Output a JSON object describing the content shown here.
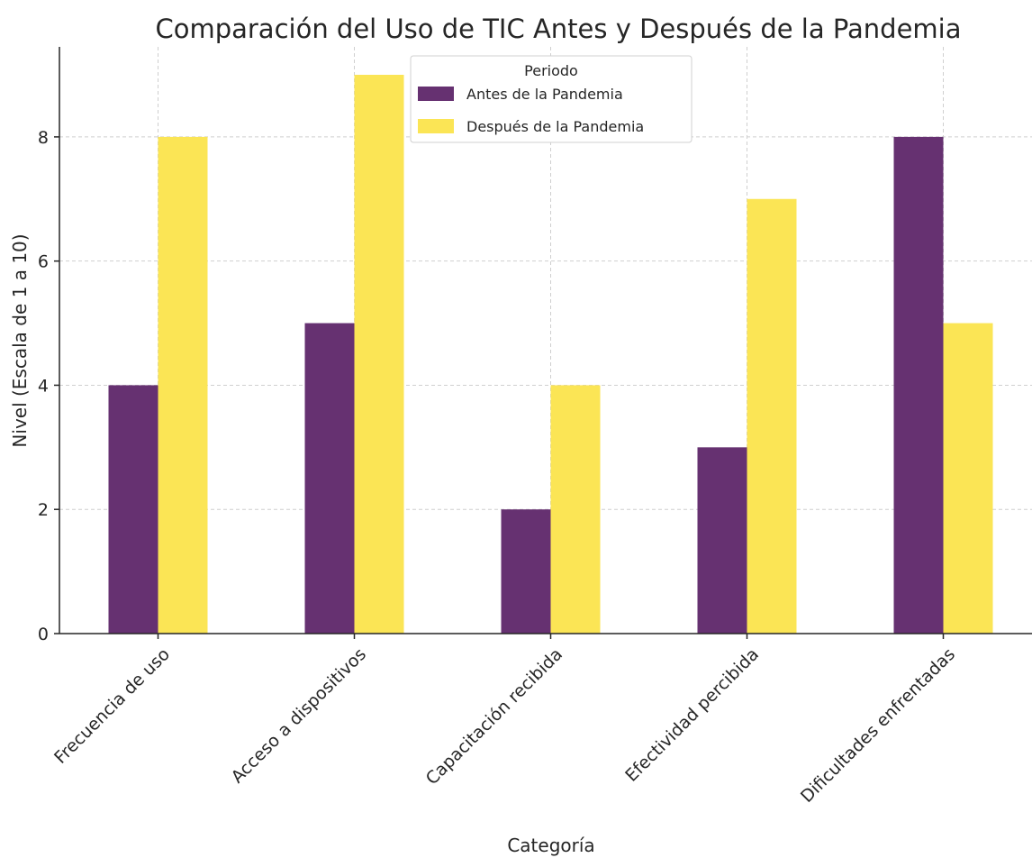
{
  "chart_data": {
    "type": "bar",
    "title": "Comparación del Uso de TIC Antes y Después de la Pandemia",
    "xlabel": "Categoría",
    "ylabel": "Nivel (Escala de 1 a 10)",
    "categories": [
      "Frecuencia de uso",
      "Acceso a dispositivos",
      "Capacitación recibida",
      "Efectividad percibida",
      "Dificultades enfrentadas"
    ],
    "series": [
      {
        "name": "Antes de la Pandemia",
        "values": [
          4,
          5,
          2,
          3,
          8
        ],
        "color": "#663171"
      },
      {
        "name": "Después de la Pandemia",
        "values": [
          8,
          9,
          4,
          7,
          5
        ],
        "color": "#fbe555"
      }
    ],
    "ylim": [
      0,
      9.45
    ],
    "yticks": [
      0,
      2,
      4,
      6,
      8
    ],
    "grid": true,
    "legend": {
      "title": "Periodo",
      "placement": "top-center"
    }
  }
}
